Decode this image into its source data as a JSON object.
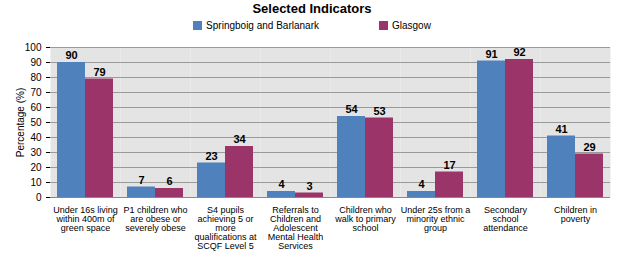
{
  "chart_data": {
    "type": "bar",
    "title": "Selected Indicators",
    "y_label": "Percentage (%)",
    "categories": [
      "Under 16s living within 400m of green space",
      "P1 children who are obese or severely obese",
      "S4 pupils achieving 5 or more qualifications at SCQF Level 5",
      "Referrals to Children and Adolescent Mental Health Services",
      "Children who walk to primary school",
      "Under 25s from a minority ethnic group",
      "Secondary school attendance",
      "Children in poverty"
    ],
    "series": [
      {
        "name": "Springboig and Barlanark",
        "color": "#4F81BD",
        "values": [
          90,
          7,
          23,
          4,
          54,
          4,
          91,
          41
        ]
      },
      {
        "name": "Glasgow",
        "color": "#9B3468",
        "values": [
          79,
          6,
          34,
          3,
          53,
          17,
          92,
          29
        ]
      }
    ],
    "ylim": [
      0,
      100
    ],
    "yticks": [
      0,
      10,
      20,
      30,
      40,
      50,
      60,
      70,
      80,
      90,
      100
    ],
    "grid": true,
    "legend": "top",
    "data_labels": true
  }
}
